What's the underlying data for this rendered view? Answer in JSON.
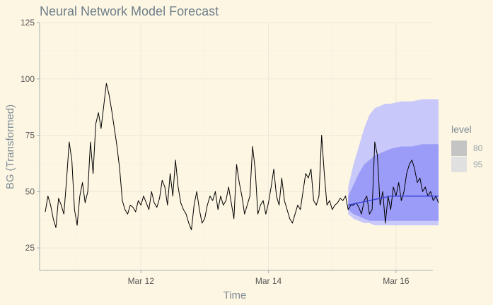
{
  "chart_data": {
    "type": "line",
    "title": "Neural Network Model Forecast",
    "xlabel": "Time",
    "ylabel": "BG (Transformed)",
    "x_ticks": [
      "Mar 12",
      "Mar 14",
      "Mar 16"
    ],
    "y_ticks": [
      25,
      50,
      75,
      100,
      125
    ],
    "xlim": [
      "Mar 10 12:00",
      "Mar 16 12:00"
    ],
    "ylim": [
      15,
      125
    ],
    "grid": true,
    "legend": {
      "title": "level",
      "placement": "right",
      "entries": [
        {
          "label": "80",
          "color": "#c4c4c4"
        },
        {
          "label": "95",
          "color": "#e0e0e0"
        }
      ]
    },
    "colors": {
      "observed": "#000000",
      "forecast_mean": "#3a46d8",
      "band_95": "#c8c8fa",
      "band_80": "#9b9bf8"
    },
    "series": [
      {
        "id": "observed",
        "style": "line",
        "x_hours": [
          0,
          1,
          2,
          3,
          4,
          5,
          6,
          7,
          8,
          9,
          10,
          11,
          12,
          13,
          14,
          15,
          16,
          17,
          18,
          19,
          20,
          21,
          22,
          23,
          24,
          25,
          26,
          27,
          28,
          29,
          30,
          31,
          32,
          33,
          34,
          35,
          36,
          37,
          38,
          39,
          40,
          41,
          42,
          43,
          44,
          45,
          46,
          47,
          48,
          49,
          50,
          51,
          52,
          53,
          54,
          55,
          56,
          57,
          58,
          59,
          60,
          61,
          62,
          63,
          64,
          65,
          66,
          67,
          68,
          69,
          70,
          71,
          72,
          73,
          74,
          75,
          76,
          77,
          78,
          79,
          80,
          81,
          82,
          83,
          84,
          85,
          86,
          87,
          88,
          89,
          90,
          91,
          92,
          93,
          94,
          95,
          96,
          97,
          98,
          99,
          100,
          101,
          102,
          103,
          104,
          105,
          106,
          107,
          108,
          109,
          110,
          111,
          112,
          113,
          114,
          115,
          116,
          117,
          118,
          119,
          120,
          121,
          122,
          123,
          124,
          125,
          126,
          127,
          128,
          129,
          130,
          131,
          132,
          133,
          134,
          135,
          136,
          137,
          138,
          139,
          140,
          141,
          142,
          143,
          144,
          145,
          146,
          147,
          148
        ],
        "values": [
          41,
          48,
          44,
          38,
          34,
          47,
          44,
          40,
          55,
          72,
          64,
          42,
          35,
          48,
          54,
          45,
          50,
          72,
          58,
          80,
          85,
          78,
          88,
          98,
          93,
          86,
          78,
          70,
          60,
          46,
          42,
          40,
          44,
          43,
          41,
          46,
          44,
          48,
          45,
          42,
          50,
          45,
          43,
          47,
          55,
          52,
          44,
          58,
          48,
          64,
          52,
          45,
          42,
          40,
          36,
          33,
          44,
          50,
          42,
          36,
          38,
          44,
          48,
          46,
          50,
          42,
          48,
          44,
          46,
          52,
          45,
          38,
          62,
          54,
          48,
          40,
          44,
          48,
          70,
          60,
          40,
          44,
          46,
          40,
          45,
          52,
          60,
          48,
          44,
          56,
          46,
          42,
          38,
          36,
          40,
          44,
          42,
          50,
          58,
          56,
          60,
          46,
          44,
          48,
          75,
          58,
          44,
          46,
          42,
          44,
          45,
          47,
          46,
          48,
          42,
          44,
          44,
          45,
          43,
          40,
          46,
          48,
          40,
          42,
          72,
          66,
          44,
          50,
          36,
          48,
          42,
          52,
          48,
          54,
          46,
          50,
          58,
          62,
          64,
          60,
          54,
          56,
          50,
          52,
          48,
          50,
          46,
          48,
          45
        ]
      },
      {
        "id": "forecast_mean",
        "style": "line",
        "x_hours": [
          114,
          118,
          122,
          126,
          130,
          134,
          138,
          142,
          146,
          148
        ],
        "values": [
          44,
          45,
          46,
          47,
          48,
          48,
          48,
          48,
          48,
          48
        ]
      },
      {
        "id": "band_95",
        "style": "ribbon",
        "x_hours": [
          114,
          116,
          118,
          120,
          122,
          124,
          126,
          128,
          130,
          134,
          138,
          142,
          146,
          148
        ],
        "lower": [
          40,
          38,
          37,
          36,
          36,
          35,
          35,
          35,
          35,
          35,
          35,
          35,
          35,
          35
        ],
        "upper": [
          52,
          62,
          70,
          78,
          84,
          87,
          88,
          89,
          89,
          90,
          90,
          91,
          91,
          91
        ]
      },
      {
        "id": "band_80",
        "style": "ribbon",
        "x_hours": [
          114,
          116,
          118,
          120,
          122,
          124,
          126,
          128,
          130,
          134,
          138,
          142,
          146,
          148
        ],
        "lower": [
          42,
          40,
          39,
          38,
          37,
          37,
          37,
          37,
          37,
          37,
          37,
          37,
          37,
          37
        ],
        "upper": [
          48,
          53,
          58,
          62,
          64,
          66,
          67,
          68,
          69,
          70,
          70,
          71,
          71,
          71
        ]
      }
    ]
  }
}
